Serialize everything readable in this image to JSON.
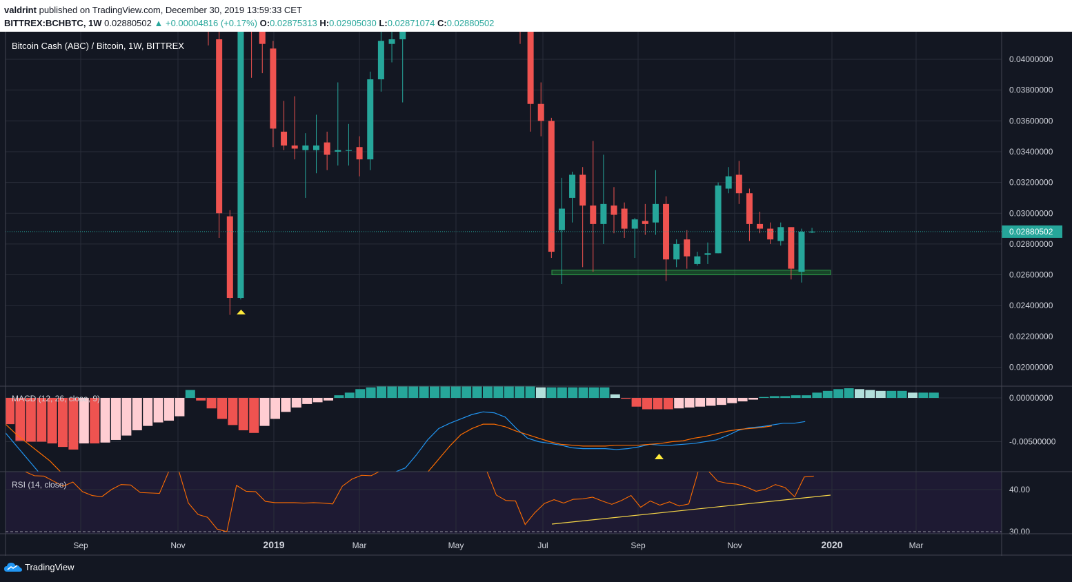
{
  "header": {
    "author": "valdrint",
    "published_text": "published on TradingView.com, December 30, 2019 13:59:33 CET",
    "symbol": "BITTREX:BCHBTC, 1W",
    "last": "0.02880502",
    "change": "+0.00004816 (+0.17%)",
    "o_label": "O:",
    "o": "0.02875313",
    "h_label": "H:",
    "h": "0.02905030",
    "l_label": "L:",
    "l": "0.02871074",
    "c_label": "C:",
    "c": "0.02880502"
  },
  "chart_title": "Bitcoin Cash (ABC) / Bitcoin, 1W, BITTREX",
  "macd_label": "MACD (12, 26, close, 9)",
  "rsi_label": "RSI (14, close)",
  "footer": {
    "brand": "TradingView"
  },
  "colors": {
    "up": "#26a69a",
    "down": "#ef5350",
    "bg": "#131722",
    "macd": "#2196f3",
    "signal": "#ff6d00",
    "rsi": "#ff6d00",
    "trend": "#f5d547",
    "support": "#1e7e34"
  },
  "chart_data": [
    {
      "type": "candlestick",
      "title": "Bitcoin Cash (ABC) / Bitcoin, 1W, BITTREX",
      "x_ticks": [
        "Sep",
        "Nov",
        "2019",
        "Mar",
        "May",
        "Jul",
        "Sep",
        "Nov",
        "2020",
        "Mar"
      ],
      "y_ticks": [
        "0.04000000",
        "0.03800000",
        "0.03600000",
        "0.03400000",
        "0.03200000",
        "0.03000000",
        "0.02800000",
        "0.02600000",
        "0.02400000",
        "0.02200000",
        "0.02000000"
      ],
      "ylim": [
        0.0187,
        0.0421
      ],
      "last_price_label": "0.02880502",
      "support_zone": [
        0.026,
        0.0263
      ],
      "candles": [
        {
          "o": 0.0425,
          "h": 0.043,
          "l": 0.0409,
          "c": 0.0418
        },
        {
          "o": 0.0413,
          "h": 0.0425,
          "l": 0.0284,
          "c": 0.03
        },
        {
          "o": 0.0298,
          "h": 0.0302,
          "l": 0.0234,
          "c": 0.0245
        },
        {
          "o": 0.0245,
          "h": 0.043,
          "l": 0.0244,
          "c": 0.043
        },
        {
          "o": 0.043,
          "h": 0.0435,
          "l": 0.0388,
          "c": 0.042
        },
        {
          "o": 0.0426,
          "h": 0.0435,
          "l": 0.0391,
          "c": 0.041
        },
        {
          "o": 0.0407,
          "h": 0.0412,
          "l": 0.0343,
          "c": 0.0355
        },
        {
          "o": 0.0353,
          "h": 0.0373,
          "l": 0.0341,
          "c": 0.0344
        },
        {
          "o": 0.0344,
          "h": 0.0376,
          "l": 0.0335,
          "c": 0.0342
        },
        {
          "o": 0.0341,
          "h": 0.0352,
          "l": 0.031,
          "c": 0.0344
        },
        {
          "o": 0.0341,
          "h": 0.0364,
          "l": 0.0326,
          "c": 0.0344
        },
        {
          "o": 0.0346,
          "h": 0.0353,
          "l": 0.0328,
          "c": 0.0338
        },
        {
          "o": 0.034,
          "h": 0.0385,
          "l": 0.0331,
          "c": 0.0341
        },
        {
          "o": 0.0341,
          "h": 0.0358,
          "l": 0.0331,
          "c": 0.0341
        },
        {
          "o": 0.0343,
          "h": 0.035,
          "l": 0.0324,
          "c": 0.0335
        },
        {
          "o": 0.0335,
          "h": 0.0392,
          "l": 0.0328,
          "c": 0.0387
        },
        {
          "o": 0.0387,
          "h": 0.042,
          "l": 0.0379,
          "c": 0.0412
        },
        {
          "o": 0.041,
          "h": 0.0419,
          "l": 0.0398,
          "c": 0.0413
        },
        {
          "o": 0.0413,
          "h": 0.0426,
          "l": 0.0372,
          "c": 0.0426
        },
        {
          "o": 0.0436,
          "h": 0.044,
          "l": 0.041,
          "c": 0.0418
        },
        {
          "o": 0.0418,
          "h": 0.0418,
          "l": 0.0353,
          "c": 0.0371
        },
        {
          "o": 0.0371,
          "h": 0.0385,
          "l": 0.035,
          "c": 0.036
        },
        {
          "o": 0.036,
          "h": 0.0362,
          "l": 0.0271,
          "c": 0.0275
        },
        {
          "o": 0.0289,
          "h": 0.0323,
          "l": 0.0254,
          "c": 0.0303
        },
        {
          "o": 0.031,
          "h": 0.0327,
          "l": 0.0294,
          "c": 0.0325
        },
        {
          "o": 0.0325,
          "h": 0.033,
          "l": 0.0265,
          "c": 0.0305
        },
        {
          "o": 0.0305,
          "h": 0.0347,
          "l": 0.0262,
          "c": 0.0293
        },
        {
          "o": 0.0293,
          "h": 0.0338,
          "l": 0.028,
          "c": 0.0306
        },
        {
          "o": 0.0305,
          "h": 0.0317,
          "l": 0.0287,
          "c": 0.0299
        },
        {
          "o": 0.0303,
          "h": 0.0307,
          "l": 0.0284,
          "c": 0.029
        },
        {
          "o": 0.029,
          "h": 0.0297,
          "l": 0.0271,
          "c": 0.0296
        },
        {
          "o": 0.0295,
          "h": 0.0306,
          "l": 0.0286,
          "c": 0.0293
        },
        {
          "o": 0.0294,
          "h": 0.0328,
          "l": 0.0286,
          "c": 0.0306
        },
        {
          "o": 0.0306,
          "h": 0.0311,
          "l": 0.0256,
          "c": 0.027
        },
        {
          "o": 0.027,
          "h": 0.0283,
          "l": 0.0265,
          "c": 0.028
        },
        {
          "o": 0.0283,
          "h": 0.0289,
          "l": 0.0264,
          "c": 0.0272
        },
        {
          "o": 0.0267,
          "h": 0.0275,
          "l": 0.0266,
          "c": 0.0272
        },
        {
          "o": 0.0273,
          "h": 0.0281,
          "l": 0.0267,
          "c": 0.0274
        },
        {
          "o": 0.0274,
          "h": 0.032,
          "l": 0.0274,
          "c": 0.0318
        },
        {
          "o": 0.0316,
          "h": 0.033,
          "l": 0.0313,
          "c": 0.0324
        },
        {
          "o": 0.0325,
          "h": 0.0334,
          "l": 0.0306,
          "c": 0.0313
        },
        {
          "o": 0.0313,
          "h": 0.0316,
          "l": 0.0282,
          "c": 0.0293
        },
        {
          "o": 0.0293,
          "h": 0.0301,
          "l": 0.0287,
          "c": 0.029
        },
        {
          "o": 0.029,
          "h": 0.0294,
          "l": 0.028,
          "c": 0.0283
        },
        {
          "o": 0.0282,
          "h": 0.0294,
          "l": 0.0279,
          "c": 0.0291
        },
        {
          "o": 0.0291,
          "h": 0.0291,
          "l": 0.0257,
          "c": 0.0264
        },
        {
          "o": 0.0262,
          "h": 0.029,
          "l": 0.0255,
          "c": 0.0288
        },
        {
          "o": 0.02875,
          "h": 0.02905,
          "l": 0.02871,
          "c": 0.02881
        }
      ]
    },
    {
      "type": "bar",
      "title": "MACD (12, 26, close, 9)",
      "y_ticks": [
        "0.00000000",
        "-0.00500000"
      ],
      "ylim": [
        -0.0085,
        0.0014
      ],
      "histogram": [
        -0.003,
        -0.0049,
        -0.005,
        -0.005,
        -0.0052,
        -0.0056,
        -0.0059,
        -0.0052,
        -0.0052,
        -0.0051,
        -0.0048,
        -0.0043,
        -0.0037,
        -0.0032,
        -0.0028,
        -0.0026,
        -0.0021,
        0.0009,
        -0.0003,
        -0.0012,
        -0.0024,
        -0.0031,
        -0.0037,
        -0.004,
        -0.0032,
        -0.0024,
        -0.0016,
        -0.0011,
        -0.0007,
        -0.0005,
        -0.0003,
        0.0003,
        0.0006,
        0.001,
        0.0012,
        0.0013,
        0.0013,
        0.0013,
        0.0013,
        0.0013,
        0.0013,
        0.0013,
        0.0013,
        0.0013,
        0.0013,
        0.0013,
        0.0013,
        0.0013,
        0.0013,
        0.0013,
        0.0012,
        0.0012,
        0.0012,
        0.0012,
        0.0012,
        0.0012,
        0.0012,
        0.0004,
        -0.0001,
        -0.001,
        -0.0013,
        -0.0013,
        -0.0013,
        -0.0012,
        -0.0011,
        -0.001,
        -0.0009,
        -0.0008,
        -0.0006,
        -0.0004,
        -0.0002,
        0.0001,
        0.0002,
        0.0002,
        0.0003,
        0.0003,
        0.0006,
        0.0008,
        0.001,
        0.0011,
        0.001,
        0.0009,
        0.0008,
        0.0008,
        0.0008,
        0.0006,
        0.0006,
        0.0006
      ],
      "macd_line": [
        -0.004,
        -0.0055,
        -0.007,
        -0.0085,
        -0.0085,
        -0.0085,
        -0.0085,
        -0.0085,
        -0.0085,
        -0.0085,
        -0.0085,
        -0.0085,
        -0.0085,
        -0.0085,
        -0.0085,
        -0.0085,
        -0.0085,
        -0.0085,
        -0.0085,
        -0.0085,
        -0.0085,
        -0.0085,
        -0.0085,
        -0.0085,
        -0.0085,
        -0.0085,
        -0.0085,
        -0.0085,
        -0.0085,
        -0.0085,
        -0.0085,
        -0.0085,
        -0.0085,
        -0.0085,
        -0.0085,
        -0.0085,
        -0.008,
        -0.0065,
        -0.0048,
        -0.0035,
        -0.0029,
        -0.0024,
        -0.0019,
        -0.0016,
        -0.0017,
        -0.0022,
        -0.0035,
        -0.0046,
        -0.005,
        -0.0052,
        -0.0054,
        -0.0057,
        -0.0058,
        -0.0058,
        -0.0058,
        -0.0059,
        -0.0058,
        -0.0056,
        -0.0053,
        -0.0054,
        -0.0054,
        -0.0053,
        -0.0052,
        -0.005,
        -0.0048,
        -0.0043,
        -0.0037,
        -0.0034,
        -0.0033,
        -0.0031,
        -0.0029,
        -0.0029,
        -0.0027
      ],
      "signal_line": [
        -0.003,
        -0.0042,
        -0.0052,
        -0.0062,
        -0.0072,
        -0.0085,
        -0.0085,
        -0.0085,
        -0.0085,
        -0.0085,
        -0.0085,
        -0.0085,
        -0.0085,
        -0.0085,
        -0.0085,
        -0.0085,
        -0.0085,
        -0.0085,
        -0.0085,
        -0.0085,
        -0.0085,
        -0.0085,
        -0.0085,
        -0.0085,
        -0.0085,
        -0.0085,
        -0.0085,
        -0.0085,
        -0.0085,
        -0.0085,
        -0.0085,
        -0.0085,
        -0.0085,
        -0.0085,
        -0.0085,
        -0.0085,
        -0.0085,
        -0.0085,
        -0.0085,
        -0.007,
        -0.0055,
        -0.0042,
        -0.0035,
        -0.003,
        -0.003,
        -0.0033,
        -0.0038,
        -0.0042,
        -0.0046,
        -0.005,
        -0.0053,
        -0.0054,
        -0.0055,
        -0.0055,
        -0.0055,
        -0.0054,
        -0.0054,
        -0.0054,
        -0.0053,
        -0.0052,
        -0.005,
        -0.0049,
        -0.0046,
        -0.0044,
        -0.0041,
        -0.0038,
        -0.0036,
        -0.0035,
        -0.0034,
        -0.0032
      ]
    },
    {
      "type": "line",
      "title": "RSI (14, close)",
      "y_ticks": [
        "40.00",
        "30.00"
      ],
      "ylim": [
        29.7,
        44.5
      ],
      "values": [
        44.5,
        44.3,
        44.3,
        43.3,
        43.2,
        42.0,
        40.8,
        41.8,
        39.5,
        38.6,
        38.3,
        40.0,
        41.2,
        41.1,
        39.3,
        39.2,
        39.1,
        44.5,
        44.5,
        36.8,
        34.1,
        33.4,
        30.6,
        30.0,
        41.0,
        39.6,
        39.5,
        37.2,
        36.9,
        36.9,
        36.9,
        36.8,
        36.9,
        36.8,
        36.6,
        40.8,
        42.5,
        43.4,
        43.3,
        44.5,
        44.5,
        44.5,
        44.5,
        44.5,
        44.5,
        44.5,
        44.5,
        44.5,
        44.5,
        44.5,
        44.5,
        38.7,
        37.4,
        37.3,
        31.7,
        34.5,
        36.7,
        37.6,
        36.8,
        37.7,
        37.8,
        38.2,
        37.3,
        36.5,
        37.4,
        38.6,
        35.8,
        37.3,
        36.3,
        37.1,
        36.1,
        36.6,
        44.5,
        44.5,
        42.0,
        41.5,
        41.3,
        40.6,
        39.6,
        40.1,
        41.2,
        40.5,
        38.3,
        43.0,
        43.2
      ],
      "oversold_level": 30
    }
  ]
}
